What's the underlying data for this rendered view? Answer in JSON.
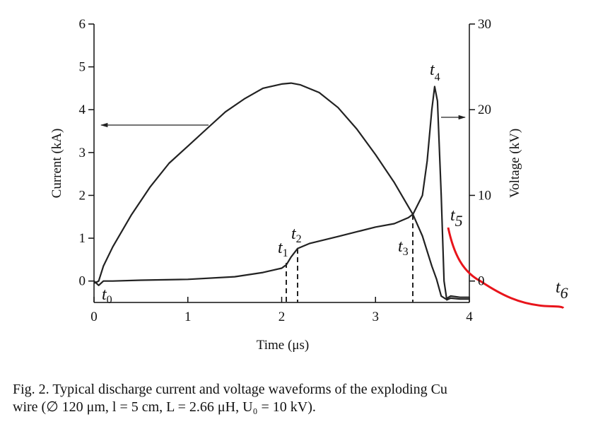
{
  "chart_data": {
    "type": "line",
    "xlabel": "Time (μs)",
    "ylabel": "Current (kA)",
    "y2label": "Voltage (kV)",
    "xlim": [
      0,
      4
    ],
    "xticks": [
      0,
      1,
      2,
      3,
      4
    ],
    "ylim": [
      -0.5,
      6
    ],
    "yticks": [
      0,
      1,
      2,
      3,
      4,
      5,
      6
    ],
    "y2lim": [
      -2.5,
      30
    ],
    "y2ticks": [
      0,
      10,
      20,
      30
    ],
    "series": [
      {
        "name": "Current",
        "color": "#222222",
        "x": [
          0,
          0.05,
          0.1,
          0.2,
          0.4,
          0.6,
          0.8,
          1.0,
          1.2,
          1.4,
          1.6,
          1.8,
          2.0,
          2.1,
          2.2,
          2.4,
          2.6,
          2.8,
          3.0,
          3.2,
          3.4,
          3.5,
          3.6,
          3.65,
          3.7,
          3.75,
          3.8,
          3.9,
          4.0
        ],
        "values": [
          -0.05,
          0.0,
          0.35,
          0.8,
          1.55,
          2.2,
          2.75,
          3.15,
          3.55,
          3.95,
          4.25,
          4.5,
          4.6,
          4.62,
          4.58,
          4.4,
          4.05,
          3.55,
          2.95,
          2.3,
          1.55,
          1.05,
          0.35,
          0.05,
          -0.35,
          -0.42,
          -0.35,
          -0.38,
          -0.38
        ]
      },
      {
        "name": "Voltage",
        "color": "#222222",
        "axis": "y2",
        "x": [
          0,
          0.05,
          0.1,
          0.2,
          0.5,
          1.0,
          1.5,
          1.8,
          2.0,
          2.05,
          2.1,
          2.17,
          2.3,
          2.6,
          3.0,
          3.2,
          3.35,
          3.4,
          3.5,
          3.55,
          3.6,
          3.63,
          3.66,
          3.7,
          3.73,
          3.76,
          3.8,
          3.9,
          4.0
        ],
        "values": [
          0,
          -0.5,
          0,
          0,
          0.1,
          0.2,
          0.5,
          1.0,
          1.5,
          1.9,
          2.8,
          3.8,
          4.4,
          5.2,
          6.3,
          6.7,
          7.4,
          7.8,
          10,
          14,
          20,
          22.7,
          21,
          10,
          0,
          -2.2,
          -2.0,
          -2.1,
          -2.1
        ]
      }
    ],
    "annotations": [
      {
        "text": "t",
        "sub": "0"
      },
      {
        "text": "t",
        "sub": "1"
      },
      {
        "text": "t",
        "sub": "2"
      },
      {
        "text": "t",
        "sub": "3"
      },
      {
        "text": "t",
        "sub": "4"
      },
      {
        "text": "t",
        "sub": "5"
      },
      {
        "text": "t",
        "sub": "6"
      }
    ],
    "caption": [
      "Fig. 2.    Typical discharge current and voltage waveforms of the exploding Cu",
      "wire (∅ 120 μm, l = 5 cm, L = 2.66 μH, U₀ = 10 kV)."
    ]
  }
}
